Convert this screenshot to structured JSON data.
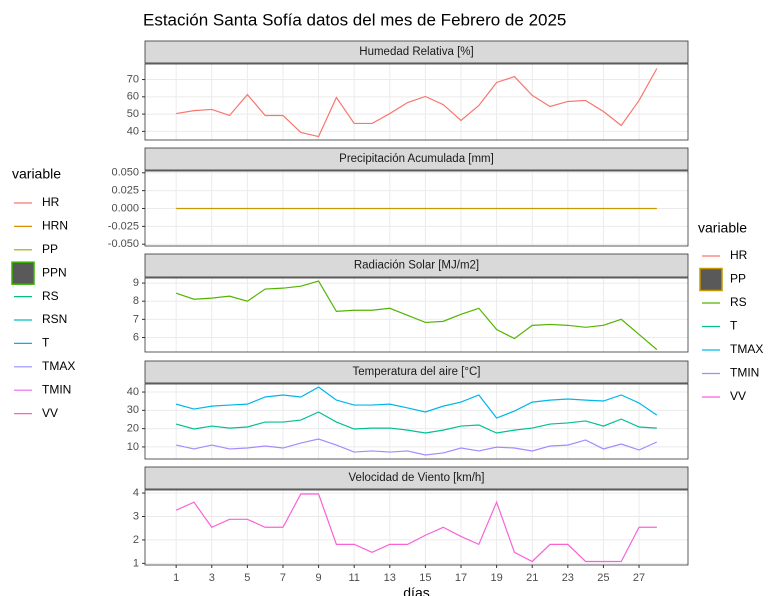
{
  "title": "Estación Santa Sofía datos del mes de Febrero de 2025",
  "chart_data": [
    {
      "type": "line",
      "title": "Humedad Relativa [%]",
      "x": [
        1,
        2,
        3,
        4,
        5,
        6,
        7,
        8,
        9,
        10,
        11,
        12,
        13,
        14,
        15,
        16,
        17,
        18,
        19,
        20,
        21,
        22,
        23,
        24,
        25,
        26,
        27,
        28
      ],
      "series": [
        {
          "name": "HR",
          "color": "#F8766D",
          "values": [
            50.3,
            52,
            52.7,
            49.2,
            61.3,
            49.2,
            49.2,
            39.4,
            37,
            59.6,
            44.6,
            44.6,
            50.3,
            56.7,
            60.2,
            55.5,
            46.3,
            55,
            68.3,
            71.7,
            60.8,
            54.4,
            57.3,
            57.9,
            51.5,
            43.4,
            57.9,
            76.4
          ]
        }
      ],
      "xlim": [
        -0.75,
        29.75
      ],
      "ylim": [
        35,
        79
      ],
      "yticks": [
        40,
        50,
        60,
        70
      ],
      "grid": true
    },
    {
      "type": "line",
      "title": "Precipitación Acumulada [mm]",
      "x": [
        1,
        2,
        3,
        4,
        5,
        6,
        7,
        8,
        9,
        10,
        11,
        12,
        13,
        14,
        15,
        16,
        17,
        18,
        19,
        20,
        21,
        22,
        23,
        24,
        25,
        26,
        27,
        28
      ],
      "series": [
        {
          "name": "PP",
          "color": "#C49A00",
          "legend_box": true,
          "values": [
            0,
            0,
            0,
            0,
            0,
            0,
            0,
            0,
            0,
            0,
            0,
            0,
            0,
            0,
            0,
            0,
            0,
            0,
            0,
            0,
            0,
            0,
            0,
            0,
            0,
            0,
            0,
            0
          ]
        }
      ],
      "xlim": [
        -0.75,
        29.75
      ],
      "ylim": [
        -0.0525,
        0.0525
      ],
      "yticks": [
        {
          "value": 0.05,
          "label": "0.050"
        },
        {
          "value": 0.025,
          "label": "0.025"
        },
        {
          "value": 0,
          "label": "0.000"
        },
        {
          "value": -0.025,
          "label": "-0.025"
        },
        {
          "value": -0.05,
          "label": "-0.050"
        }
      ],
      "grid": true
    },
    {
      "type": "line",
      "title": "Radiación Solar [MJ/m2]",
      "x": [
        1,
        2,
        3,
        4,
        5,
        6,
        7,
        8,
        9,
        10,
        11,
        12,
        13,
        14,
        15,
        16,
        17,
        18,
        19,
        20,
        21,
        22,
        23,
        24,
        25,
        26,
        27,
        28
      ],
      "series": [
        {
          "name": "RS",
          "color": "#53B400",
          "values": [
            8.44,
            8.11,
            8.17,
            8.28,
            8.0,
            8.67,
            8.72,
            8.83,
            9.11,
            7.44,
            7.5,
            7.5,
            7.61,
            7.22,
            6.83,
            6.89,
            7.28,
            7.61,
            6.44,
            5.94,
            6.67,
            6.72,
            6.67,
            6.56,
            6.67,
            7.0,
            6.17,
            5.33
          ]
        }
      ],
      "xlim": [
        -0.75,
        29.75
      ],
      "ylim": [
        5.2,
        9.28
      ],
      "yticks": [
        6,
        7,
        8,
        9
      ],
      "grid": true
    },
    {
      "type": "line",
      "title": "Temperatura del aire [°C]",
      "x": [
        1,
        2,
        3,
        4,
        5,
        6,
        7,
        8,
        9,
        10,
        11,
        12,
        13,
        14,
        15,
        16,
        17,
        18,
        19,
        20,
        21,
        22,
        23,
        24,
        25,
        26,
        27,
        28
      ],
      "series": [
        {
          "name": "T",
          "color": "#00C094",
          "values": [
            22.5,
            19.8,
            21.4,
            20.3,
            20.9,
            23.6,
            23.6,
            24.7,
            29.1,
            23.6,
            19.8,
            20.3,
            20.3,
            19.2,
            17.6,
            19.2,
            21.4,
            22,
            17.6,
            19.2,
            20.3,
            22.5,
            23.1,
            24.2,
            21.4,
            25.2,
            20.9,
            20.3
          ]
        },
        {
          "name": "TMAX",
          "color": "#00B6EB",
          "values": [
            33.4,
            30.7,
            32.3,
            32.9,
            33.4,
            37.3,
            38.4,
            37.3,
            42.7,
            35.6,
            32.9,
            32.9,
            33.4,
            31.3,
            29.1,
            32.3,
            34.5,
            38.4,
            25.8,
            29.6,
            34.5,
            35.6,
            36.2,
            35.6,
            35.1,
            38.4,
            34,
            27.4
          ]
        },
        {
          "name": "TMIN",
          "color": "#A58AFF",
          "values": [
            11,
            8.9,
            11,
            8.9,
            9.4,
            10.5,
            9.4,
            12.1,
            14.3,
            11,
            7.2,
            7.8,
            7.2,
            7.8,
            5.6,
            6.7,
            9.4,
            7.8,
            9.9,
            9.4,
            7.8,
            10.5,
            11,
            13.8,
            8.9,
            11.6,
            8.3,
            12.7
          ]
        }
      ],
      "xlim": [
        -0.75,
        29.75
      ],
      "ylim": [
        3.4,
        44.4
      ],
      "yticks": [
        10,
        20,
        30,
        40
      ],
      "grid": true
    },
    {
      "type": "line",
      "title": "Velocidad de Viento [km/h]",
      "xlabel": "días",
      "x": [
        1,
        2,
        3,
        4,
        5,
        6,
        7,
        8,
        9,
        10,
        11,
        12,
        13,
        14,
        15,
        16,
        17,
        18,
        19,
        20,
        21,
        22,
        23,
        24,
        25,
        26,
        27,
        28
      ],
      "series": [
        {
          "name": "VV",
          "color": "#FB61D7",
          "values": [
            3.27,
            3.61,
            2.54,
            2.88,
            2.88,
            2.54,
            2.54,
            3.96,
            3.96,
            1.81,
            1.81,
            1.47,
            1.81,
            1.81,
            2.2,
            2.54,
            2.15,
            1.81,
            3.61,
            1.47,
            1.08,
            1.81,
            1.81,
            1.08,
            1.08,
            1.08,
            2.54,
            2.54
          ]
        }
      ],
      "xlim": [
        -0.75,
        29.75
      ],
      "ylim": [
        0.93,
        4.13
      ],
      "yticks": [
        1,
        2,
        3,
        4
      ],
      "xticks": [
        1,
        3,
        5,
        7,
        9,
        11,
        13,
        15,
        17,
        19,
        21,
        23,
        25,
        27
      ],
      "grid": true
    }
  ],
  "legend_left": {
    "title": "variable",
    "items": [
      {
        "name": "HR",
        "color": "#F8766D"
      },
      {
        "name": "HRN",
        "color": "#D89000"
      },
      {
        "name": "PP",
        "color": "#A3A500"
      },
      {
        "name": "PPN",
        "color": "#39B600",
        "box": true
      },
      {
        "name": "RS",
        "color": "#00BF7D"
      },
      {
        "name": "RSN",
        "color": "#00BFC4"
      },
      {
        "name": "T",
        "color": "#00B0F6"
      },
      {
        "name": "TMAX",
        "color": "#9590FF"
      },
      {
        "name": "TMIN",
        "color": "#E76BF3"
      },
      {
        "name": "VV",
        "color": "#FF62BC"
      }
    ]
  },
  "legend_right": {
    "title": "variable"
  }
}
